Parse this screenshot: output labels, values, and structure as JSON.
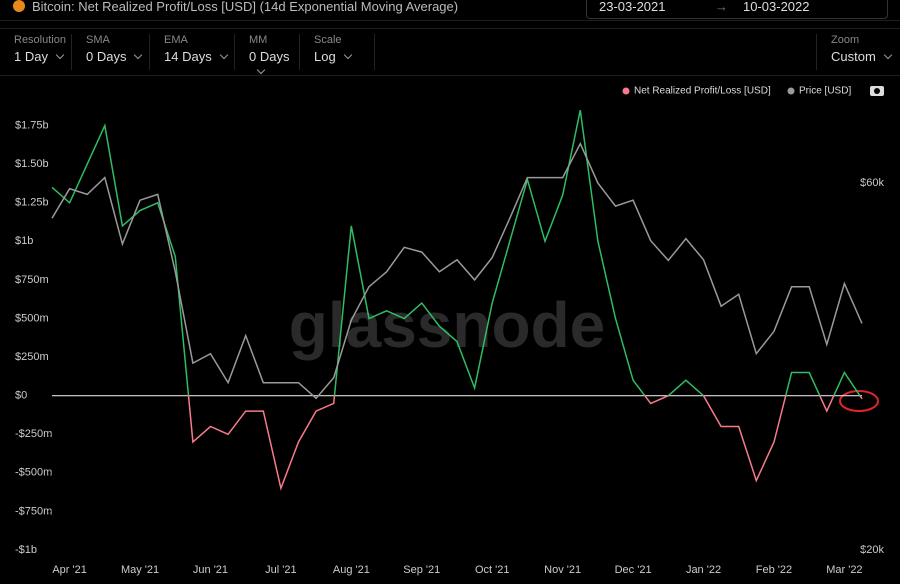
{
  "header": {
    "date_from": "23-03-2021",
    "date_to": "10-03-2022"
  },
  "controls": [
    {
      "label": "Resolution",
      "value": "1 Day"
    },
    {
      "label": "SMA",
      "value": "0 Days"
    },
    {
      "label": "EMA",
      "value": "14 Days"
    },
    {
      "label": "MM",
      "value": "0 Days"
    },
    {
      "label": "Scale",
      "value": "Log"
    },
    {
      "label": "Zoom",
      "value": "Custom"
    }
  ],
  "chart_data": {
    "type": "line",
    "title": "Bitcoin: Net Realized Profit/Loss [USD] (14d Exponential Moving Average)",
    "watermark": "glassnode",
    "legend": "top-right",
    "x": [
      null,
      "Apr '21",
      null,
      null,
      null,
      "May '21",
      null,
      null,
      null,
      "Jun '21",
      null,
      null,
      null,
      "Jul '21",
      null,
      null,
      null,
      "Aug '21",
      null,
      null,
      null,
      "Sep '21",
      null,
      null,
      null,
      "Oct '21",
      null,
      null,
      null,
      "Nov '21",
      null,
      null,
      null,
      "Dec '21",
      null,
      null,
      null,
      "Jan '22",
      null,
      null,
      null,
      "Feb '22",
      null,
      null,
      null,
      "Mar '22",
      null
    ],
    "series": [
      {
        "name": "Net Realized Profit/Loss [USD]",
        "color": "#2ebd63",
        "negative_color": "#f77b8a",
        "values": [
          1350000000,
          1250000000,
          1500000000,
          1750000000,
          1100000000,
          1200000000,
          1250000000,
          900000000,
          -300000000,
          -200000000,
          -250000000,
          -100000000,
          -100000000,
          -600000000,
          -300000000,
          -100000000,
          -50000000,
          1100000000,
          500000000,
          550000000,
          500000000,
          600000000,
          450000000,
          350000000,
          50000000,
          600000000,
          1000000000,
          1400000000,
          1000000000,
          1300000000,
          1850000000,
          1000000000,
          500000000,
          100000000,
          -50000000,
          0,
          100000000,
          0,
          -200000000,
          -200000000,
          -550000000,
          -300000000,
          150000000,
          150000000,
          -100000000,
          150000000,
          -20000000
        ]
      },
      {
        "name": "Price [USD]",
        "color": "#9a9a9a",
        "axis": "y2",
        "values": [
          54000,
          59000,
          58000,
          61000,
          50000,
          57000,
          58000,
          46000,
          35000,
          36000,
          33000,
          38000,
          33000,
          33000,
          33000,
          31500,
          33500,
          39800,
          44000,
          46000,
          49500,
          48800,
          46000,
          47700,
          44900,
          48000,
          54000,
          61000,
          61000,
          61000,
          67500,
          60000,
          56000,
          57000,
          50500,
          47600,
          50800,
          47700,
          41500,
          43000,
          36000,
          38500,
          44000,
          44000,
          37000,
          44400,
          39400
        ]
      }
    ],
    "ylim": [
      -1000000000,
      2000000000
    ],
    "yticks": [
      {
        "value": -1000000000,
        "label": "-$1b"
      },
      {
        "value": -750000000,
        "label": "-$750m"
      },
      {
        "value": -500000000,
        "label": "-$500m"
      },
      {
        "value": -250000000,
        "label": "-$250m"
      },
      {
        "value": 0,
        "label": "$0"
      },
      {
        "value": 250000000,
        "label": "$250m"
      },
      {
        "value": 500000000,
        "label": "$500m"
      },
      {
        "value": 750000000,
        "label": "$750m"
      },
      {
        "value": 1000000000,
        "label": "$1b"
      },
      {
        "value": 1250000000,
        "label": "$1.25b"
      },
      {
        "value": 1500000000,
        "label": "$1.50b"
      },
      {
        "value": 1750000000,
        "label": "$1.75b"
      }
    ],
    "y2lim": [
      20000,
      80000
    ],
    "y2_log_scale": true,
    "y2ticks": [
      {
        "value": 20000,
        "label": "$20k"
      },
      {
        "value": 60000,
        "label": "$60k"
      }
    ],
    "zero_line_color": "#dddddd"
  }
}
